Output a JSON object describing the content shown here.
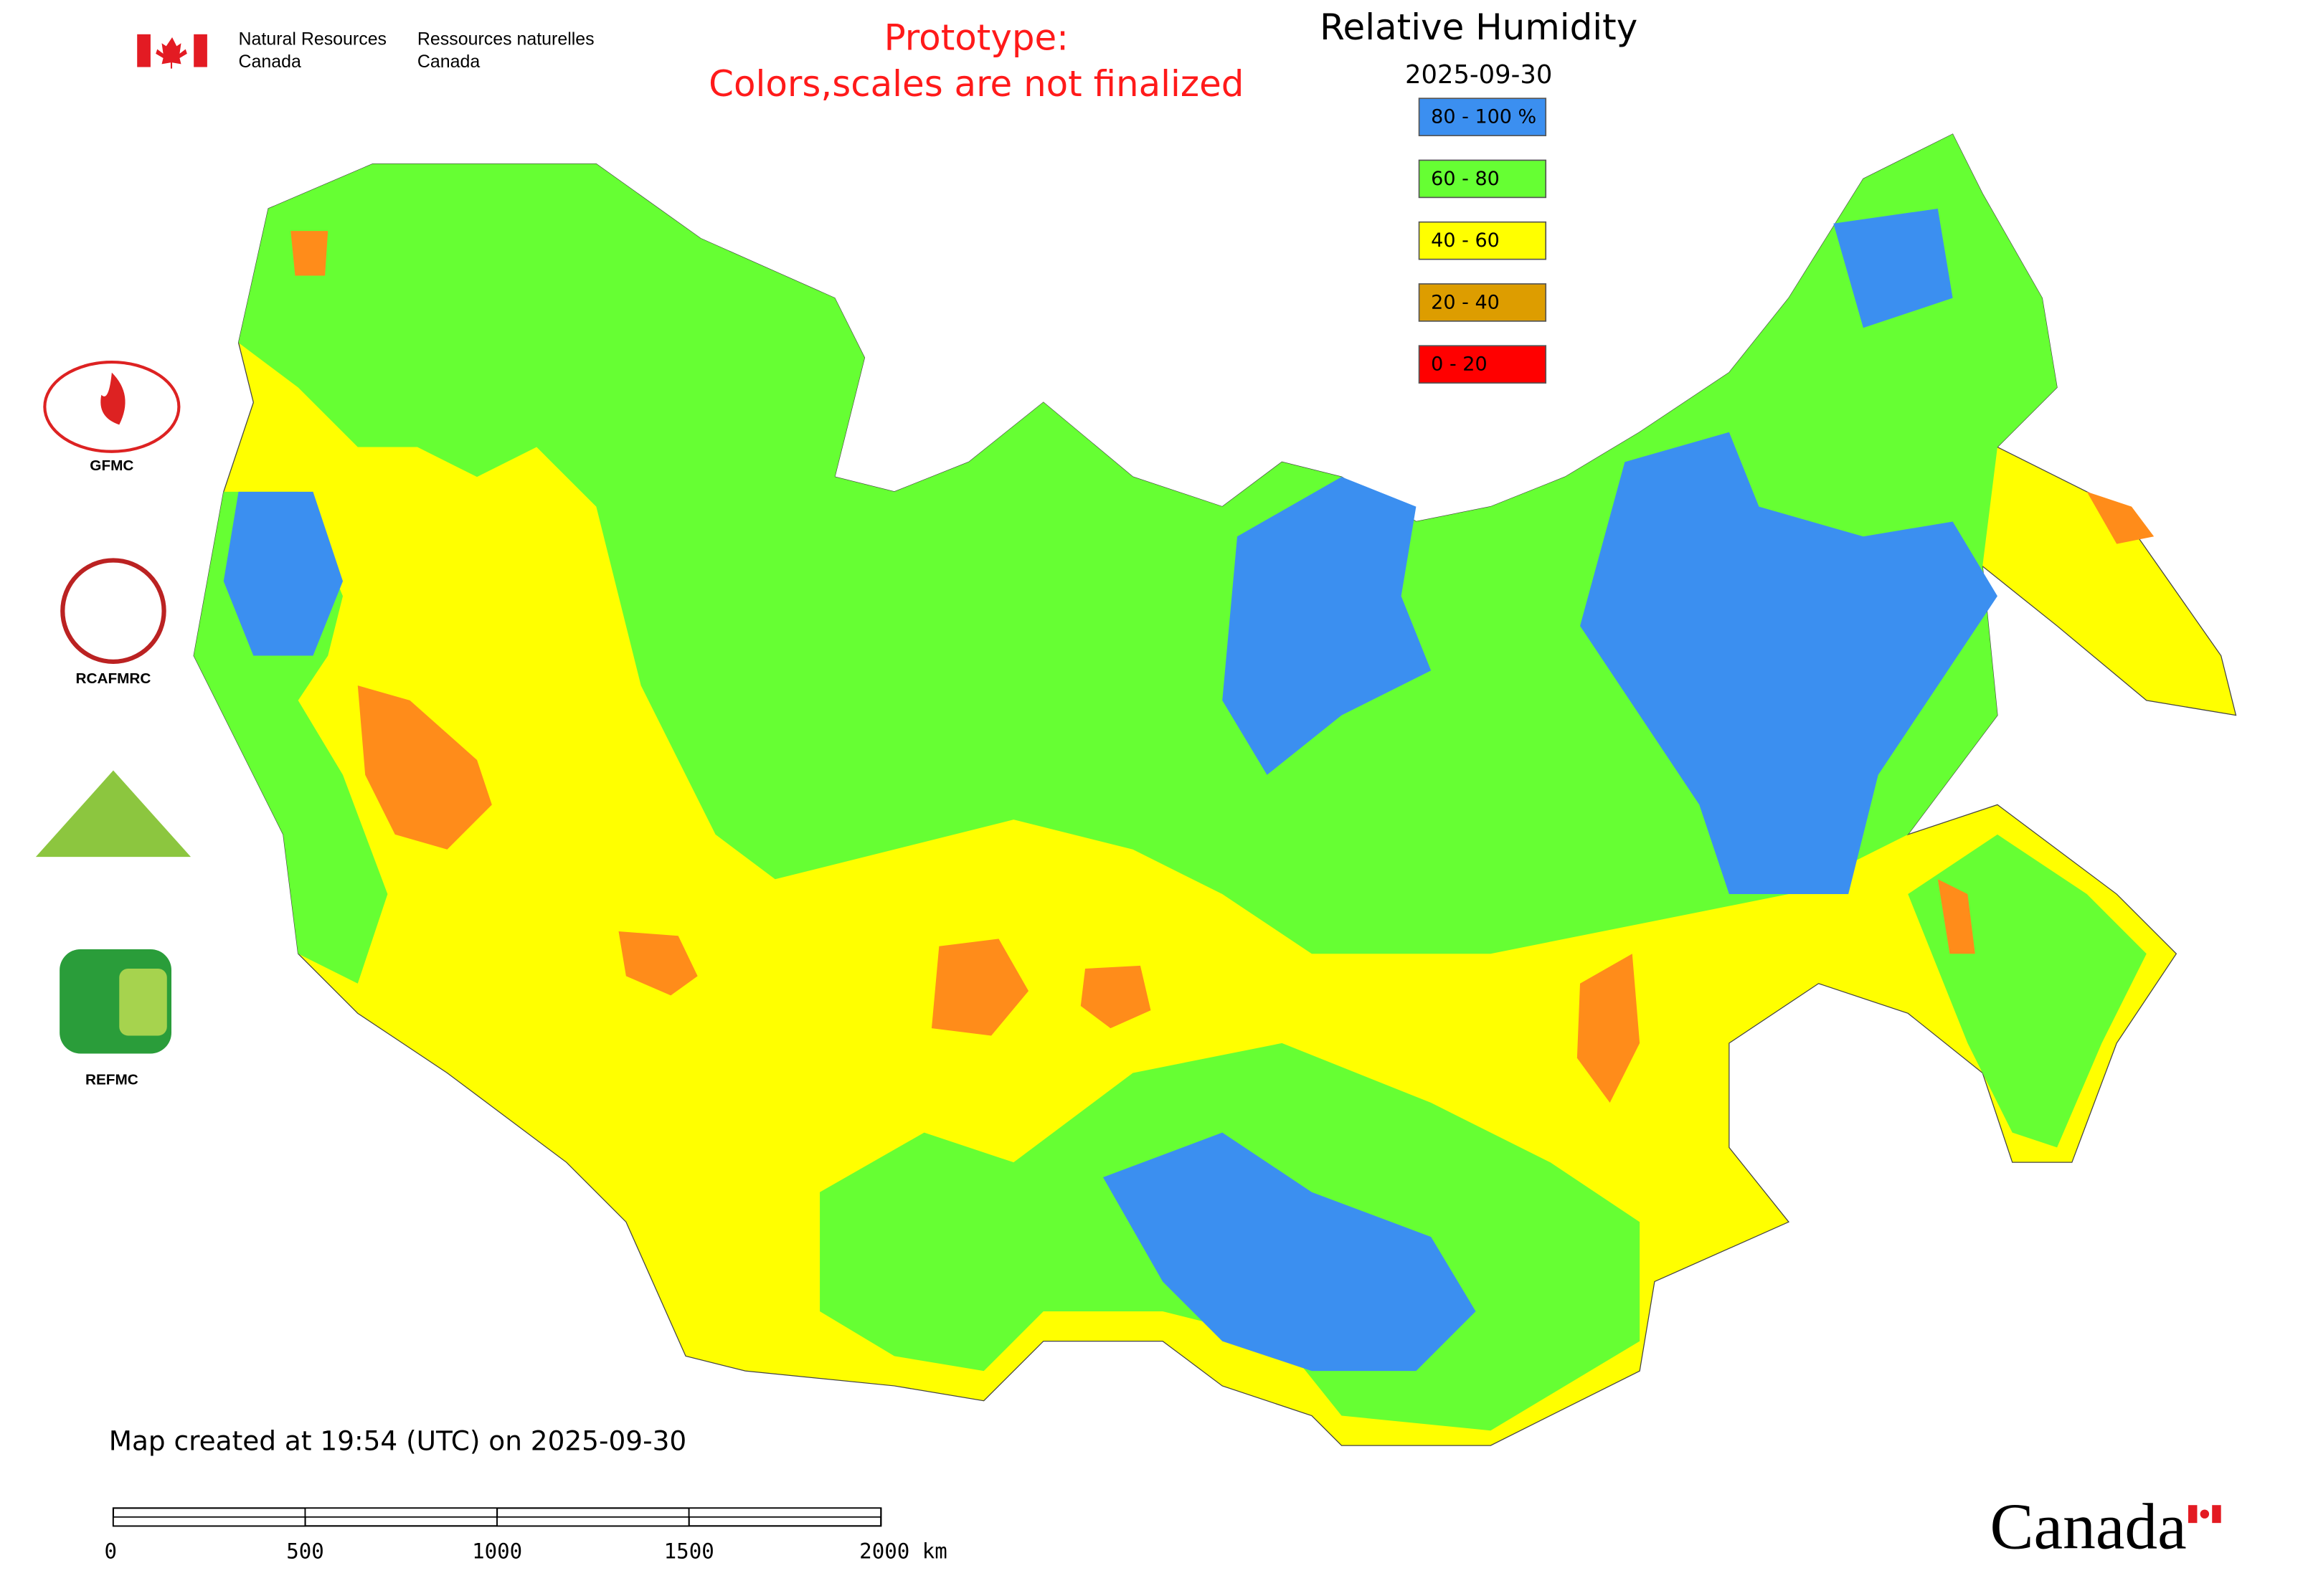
{
  "header": {
    "department_en": [
      "Natural Resources",
      "Canada"
    ],
    "department_fr": [
      "Ressources naturelles",
      "Canada"
    ],
    "notice": [
      "Prototype:",
      "Colors,scales are not finalized"
    ]
  },
  "map": {
    "title": "Relative Humidity",
    "date": "2025-09-30",
    "legend": [
      {
        "label": "80 - 100 %",
        "color": "#3b8ff0"
      },
      {
        "label": "60 - 80",
        "color": "#66ff33"
      },
      {
        "label": "40 - 60",
        "color": "#ffff00"
      },
      {
        "label": "20 - 40",
        "color": "#dd9d00"
      },
      {
        "label": "0 - 20",
        "color": "#ff0000"
      }
    ],
    "created": "Map created at 19:54 (UTC) on 2025-09-30",
    "scale_bar": {
      "ticks": [
        0,
        500,
        1000,
        1500,
        {
          "value": 2000,
          "label": "2000 km"
        }
      ]
    }
  },
  "logos": [
    "GFMC",
    "RCAFMRC",
    "REFMC"
  ],
  "wordmark": "Canada"
}
